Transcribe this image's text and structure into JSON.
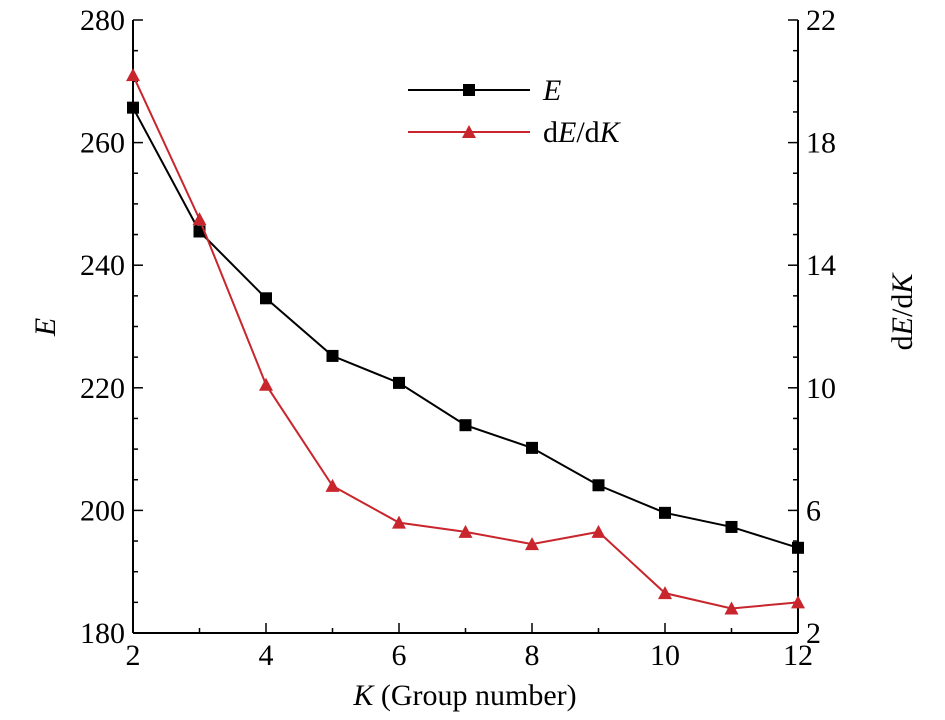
{
  "chart_data": {
    "type": "line",
    "x": [
      2,
      3,
      4,
      5,
      6,
      7,
      8,
      9,
      10,
      11,
      12
    ],
    "xlim": [
      2,
      12
    ],
    "xticks": [
      2,
      4,
      6,
      8,
      10,
      12
    ],
    "xticks_minor": [
      3,
      5,
      7,
      9,
      11
    ],
    "xlabel": {
      "var": "K",
      "rest": " (Group number)"
    },
    "ylim_left": [
      180,
      280
    ],
    "yticks_left": [
      180,
      200,
      220,
      240,
      260,
      280
    ],
    "ylabel_left": "E",
    "ylim_right": [
      2,
      22
    ],
    "yticks_right": [
      2,
      6,
      10,
      14,
      18,
      22
    ],
    "ylabel_right": "dE/dK",
    "series": [
      {
        "name": "E",
        "axis": "left",
        "marker": "square",
        "color": "#000000",
        "values": [
          265.7,
          245.5,
          234.6,
          225.2,
          220.8,
          213.9,
          210.2,
          204.1,
          199.6,
          197.3,
          193.9
        ]
      },
      {
        "name": "dE/dK",
        "axis": "right",
        "marker": "triangle",
        "color": "#c8262c",
        "values": [
          20.2,
          15.5,
          10.1,
          6.8,
          5.6,
          5.3,
          4.9,
          5.3,
          3.3,
          2.8,
          3.0
        ]
      }
    ],
    "legend": {
      "position": "top-center",
      "entries": [
        {
          "label": "E",
          "parts": [
            {
              "t": "E",
              "i": true
            }
          ]
        },
        {
          "label": "dE/dK",
          "parts": [
            {
              "t": "d",
              "i": false
            },
            {
              "t": "E",
              "i": true
            },
            {
              "t": "/d",
              "i": false
            },
            {
              "t": "K",
              "i": true
            }
          ]
        }
      ]
    }
  }
}
